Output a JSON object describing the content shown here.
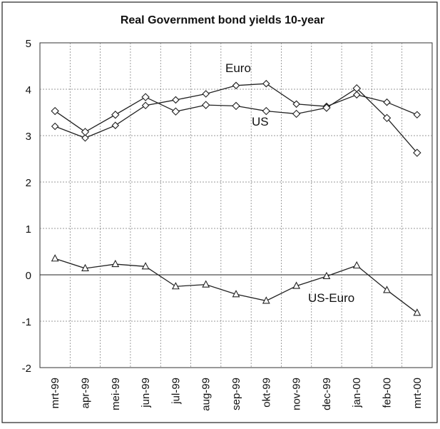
{
  "chart_data": {
    "type": "line",
    "title": "Real Government bond yields 10-year",
    "xlabel": "",
    "ylabel": "",
    "categories": [
      "mrt-99",
      "apr-99",
      "mei-99",
      "jun-99",
      "jul-99",
      "aug-99",
      "sep-99",
      "okt-99",
      "nov-99",
      "dec-99",
      "jan-00",
      "feb-00",
      "mrt-00"
    ],
    "ylim": [
      -2,
      5
    ],
    "yticks": [
      "5",
      "4",
      "3",
      "2",
      "1",
      "0",
      "-1",
      "-2"
    ],
    "grid": true,
    "series": [
      {
        "name": "Euro",
        "marker": "diamond",
        "values": [
          3.2,
          2.95,
          3.22,
          3.65,
          3.77,
          3.9,
          4.08,
          4.12,
          3.68,
          3.63,
          3.88,
          3.72,
          3.45
        ]
      },
      {
        "name": "US",
        "marker": "square",
        "values": [
          3.53,
          3.08,
          3.45,
          3.83,
          3.52,
          3.66,
          3.64,
          3.53,
          3.47,
          3.6,
          4.02,
          3.38,
          2.63
        ]
      },
      {
        "name": "US-Euro",
        "marker": "triangle",
        "values": [
          0.35,
          0.14,
          0.23,
          0.18,
          -0.25,
          -0.21,
          -0.42,
          -0.56,
          -0.24,
          -0.03,
          0.2,
          -0.33,
          -0.82
        ]
      }
    ]
  }
}
